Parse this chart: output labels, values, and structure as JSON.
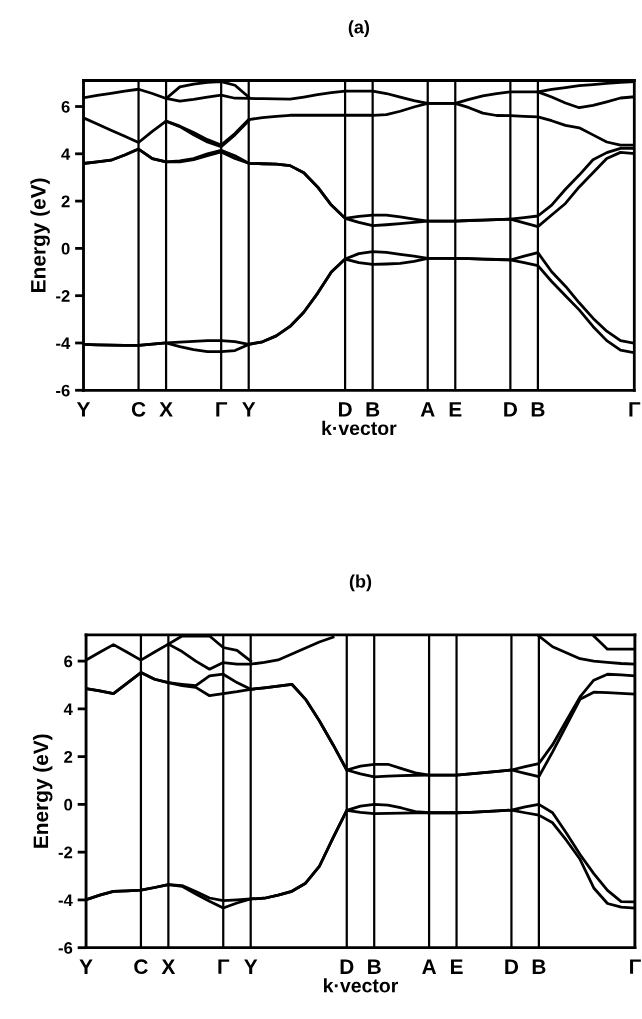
{
  "chart_data": [
    {
      "type": "line",
      "title": "(a)",
      "xlabel": "k·vector",
      "ylabel": "Energy (eV)",
      "ylim": [
        -6,
        7.1
      ],
      "yticks": [
        -6,
        -4,
        -2,
        0,
        2,
        4,
        6
      ],
      "categories": [
        "Y",
        null,
        null,
        null,
        "C",
        null,
        "X",
        null,
        null,
        null,
        "Γ",
        null,
        "Y",
        null,
        null,
        null,
        null,
        null,
        null,
        "D",
        null,
        "B",
        null,
        null,
        null,
        "A",
        null,
        "E",
        null,
        null,
        null,
        "D",
        null,
        "B",
        null,
        null,
        null,
        null,
        null,
        null,
        "Γ"
      ],
      "grid": "x",
      "marker": "none",
      "line_style": "solid",
      "series": [
        {
          "color": "#000000",
          "values": [
            -4.06,
            -4.08,
            -4.09,
            -4.1,
            -4.1,
            -4.05,
            -4.0,
            -4.15,
            -4.28,
            -4.37,
            -4.37,
            -4.32,
            -4.06,
            -3.95,
            -3.7,
            -3.3,
            -2.7,
            -1.9,
            -1.0,
            -0.45,
            -0.6,
            -0.68,
            -0.66,
            -0.63,
            -0.55,
            -0.42,
            -0.42,
            -0.42,
            -0.43,
            -0.45,
            -0.47,
            -0.49,
            -0.6,
            -0.73,
            -1.4,
            -2.0,
            -2.6,
            -3.3,
            -3.9,
            -4.3,
            -4.41
          ]
        },
        {
          "color": "#000000",
          "values": [
            -4.06,
            -4.08,
            -4.09,
            -4.1,
            -4.1,
            -4.05,
            -4.0,
            -3.96,
            -3.93,
            -3.9,
            -3.9,
            -3.94,
            -4.06,
            -3.95,
            -3.7,
            -3.3,
            -2.7,
            -1.9,
            -1.0,
            -0.45,
            -0.22,
            -0.14,
            -0.17,
            -0.25,
            -0.33,
            -0.42,
            -0.42,
            -0.42,
            -0.43,
            -0.45,
            -0.47,
            -0.49,
            -0.33,
            -0.18,
            -0.99,
            -1.6,
            -2.3,
            -2.95,
            -3.5,
            -3.9,
            -4.01
          ]
        },
        {
          "color": "#000000",
          "values": [
            3.59,
            3.66,
            3.73,
            3.95,
            4.2,
            3.8,
            3.66,
            3.66,
            3.75,
            3.92,
            4.08,
            3.8,
            3.6,
            3.58,
            3.56,
            3.5,
            3.2,
            2.6,
            1.83,
            1.27,
            1.1,
            0.96,
            1.0,
            1.05,
            1.1,
            1.15,
            1.15,
            1.15,
            1.18,
            1.2,
            1.22,
            1.24,
            1.08,
            0.92,
            1.41,
            1.9,
            2.6,
            3.2,
            3.8,
            4.06,
            4.01
          ]
        },
        {
          "color": "#000000",
          "values": [
            3.59,
            3.66,
            3.73,
            3.95,
            4.2,
            3.8,
            3.66,
            3.7,
            3.8,
            4.0,
            4.15,
            3.92,
            3.6,
            3.58,
            3.56,
            3.5,
            3.2,
            2.6,
            1.83,
            1.27,
            1.35,
            1.41,
            1.41,
            1.33,
            1.24,
            1.15,
            1.15,
            1.15,
            1.18,
            1.2,
            1.22,
            1.24,
            1.3,
            1.37,
            1.83,
            2.5,
            3.1,
            3.75,
            4.05,
            4.23,
            4.23
          ]
        },
        {
          "color": "#000000",
          "values": [
            5.52,
            5.26,
            5.0,
            4.74,
            4.48,
            4.95,
            5.38,
            5.17,
            4.9,
            4.6,
            4.37,
            4.86,
            5.45,
            5.53,
            5.58,
            5.63,
            5.63,
            5.63,
            5.63,
            5.63,
            5.63,
            5.63,
            5.66,
            5.8,
            5.98,
            6.13,
            6.13,
            6.13,
            5.95,
            5.72,
            5.62,
            5.61,
            5.58,
            5.56,
            5.4,
            5.2,
            5.1,
            4.8,
            4.5,
            4.37,
            4.37
          ]
        },
        {
          "color": "#000000",
          "values": [
            null,
            null,
            null,
            null,
            null,
            null,
            5.38,
            5.15,
            4.8,
            4.5,
            4.3,
            4.8,
            5.4,
            null,
            null,
            null,
            null,
            null,
            null,
            null,
            null,
            null,
            null,
            null,
            null,
            null,
            null,
            null,
            null,
            null,
            null,
            null,
            null,
            null,
            null,
            null,
            null,
            null,
            null,
            null,
            null
          ]
        },
        {
          "color": "#000000",
          "values": [
            6.37,
            6.47,
            6.56,
            6.65,
            6.73,
            6.55,
            6.34,
            6.23,
            6.3,
            6.4,
            6.48,
            6.35,
            6.34,
            6.33,
            6.32,
            6.31,
            6.4,
            6.5,
            6.59,
            6.65,
            6.65,
            6.65,
            6.55,
            6.4,
            6.25,
            6.13,
            6.13,
            6.13,
            6.3,
            6.45,
            6.55,
            6.62,
            6.62,
            6.62,
            6.4,
            6.15,
            5.95,
            6.05,
            6.2,
            6.36,
            6.41
          ]
        },
        {
          "color": "#000000",
          "values": [
            null,
            null,
            null,
            null,
            null,
            null,
            6.34,
            6.83,
            6.95,
            7.02,
            7.05,
            6.9,
            6.4,
            null,
            null,
            null,
            null,
            null,
            null,
            null,
            null,
            null,
            null,
            null,
            null,
            null,
            null,
            null,
            null,
            null,
            null,
            null,
            null,
            null,
            null,
            null,
            null,
            null,
            null,
            null,
            null
          ]
        },
        {
          "color": "#000000",
          "values": [
            null,
            null,
            null,
            null,
            null,
            null,
            null,
            null,
            null,
            null,
            null,
            null,
            null,
            null,
            null,
            null,
            null,
            null,
            null,
            null,
            null,
            null,
            null,
            null,
            null,
            null,
            null,
            null,
            null,
            null,
            null,
            null,
            null,
            6.62,
            6.72,
            6.8,
            6.88,
            6.93,
            6.98,
            7.02,
            7.05
          ]
        }
      ]
    },
    {
      "type": "line",
      "title": "(b)",
      "xlabel": "k·vector",
      "ylabel": "Energy (eV)",
      "ylim": [
        -6,
        7.1
      ],
      "yticks": [
        -6,
        -4,
        -2,
        0,
        2,
        4,
        6
      ],
      "categories": [
        "Y",
        null,
        null,
        null,
        "C",
        null,
        "X",
        null,
        null,
        null,
        "Γ",
        null,
        "Y",
        null,
        null,
        null,
        null,
        null,
        null,
        "D",
        null,
        "B",
        null,
        null,
        null,
        "A",
        null,
        "E",
        null,
        null,
        null,
        "D",
        null,
        "B",
        null,
        null,
        null,
        null,
        null,
        null,
        "Γ"
      ],
      "grid": "x",
      "marker": "none",
      "line_style": "solid",
      "series": [
        {
          "color": "#000000",
          "values": [
            -3.99,
            -3.8,
            -3.64,
            -3.62,
            -3.59,
            -3.48,
            -3.36,
            -3.43,
            -3.75,
            -4.06,
            -4.34,
            -4.13,
            -3.96,
            -3.93,
            -3.8,
            -3.64,
            -3.3,
            -2.6,
            -1.4,
            -0.25,
            -0.33,
            -0.39,
            -0.38,
            -0.37,
            -0.36,
            -0.35,
            -0.35,
            -0.35,
            -0.33,
            -0.3,
            -0.27,
            -0.24,
            -0.35,
            -0.45,
            -0.77,
            -1.5,
            -2.3,
            -3.5,
            -4.15,
            -4.3,
            -4.34
          ]
        },
        {
          "color": "#000000",
          "values": [
            -3.99,
            -3.8,
            -3.64,
            -3.62,
            -3.59,
            -3.48,
            -3.36,
            -3.4,
            -3.65,
            -3.92,
            -4.03,
            -4.0,
            -3.96,
            -3.93,
            -3.8,
            -3.64,
            -3.3,
            -2.6,
            -1.4,
            -0.25,
            -0.07,
            0.0,
            -0.03,
            -0.15,
            -0.3,
            -0.35,
            -0.35,
            -0.35,
            -0.33,
            -0.3,
            -0.27,
            -0.24,
            -0.1,
            0.0,
            -0.35,
            -1.2,
            -2.1,
            -2.9,
            -3.6,
            -4.07,
            -4.08
          ]
        },
        {
          "color": "#000000",
          "values": [
            4.85,
            4.75,
            4.64,
            5.08,
            5.52,
            5.24,
            5.1,
            4.97,
            4.9,
            4.55,
            4.64,
            4.72,
            4.82,
            4.88,
            4.95,
            5.03,
            4.4,
            3.5,
            2.5,
            1.44,
            1.28,
            1.15,
            1.18,
            1.2,
            1.22,
            1.23,
            1.23,
            1.23,
            1.28,
            1.33,
            1.38,
            1.44,
            1.3,
            1.16,
            2.2,
            3.3,
            4.4,
            4.7,
            4.68,
            4.65,
            4.62
          ]
        },
        {
          "color": "#000000",
          "values": [
            4.85,
            4.75,
            4.64,
            5.08,
            5.52,
            5.24,
            5.1,
            5.03,
            4.97,
            5.38,
            5.45,
            5.1,
            4.82,
            4.88,
            4.95,
            5.03,
            4.4,
            3.5,
            2.5,
            1.44,
            1.6,
            1.68,
            1.68,
            1.5,
            1.32,
            1.23,
            1.23,
            1.23,
            1.28,
            1.33,
            1.38,
            1.44,
            1.58,
            1.71,
            2.5,
            3.5,
            4.5,
            5.2,
            5.45,
            5.42,
            5.38
          ]
        },
        {
          "color": "#000000",
          "values": [
            6.04,
            6.37,
            6.69,
            6.37,
            6.04,
            6.38,
            6.71,
            6.4,
            6.0,
            5.66,
            5.94,
            5.87,
            5.87,
            5.95,
            6.05,
            6.3,
            6.55,
            6.8,
            7.0,
            null,
            null,
            null,
            null,
            null,
            null,
            null,
            null,
            null,
            null,
            null,
            null,
            null,
            null,
            null,
            null,
            null,
            null,
            null,
            null,
            null,
            null
          ]
        },
        {
          "color": "#000000",
          "values": [
            null,
            null,
            null,
            null,
            null,
            null,
            6.71,
            7.05,
            7.05,
            7.05,
            6.57,
            6.45,
            6.0,
            null,
            null,
            null,
            null,
            null,
            null,
            null,
            null,
            null,
            null,
            null,
            null,
            null,
            null,
            null,
            null,
            null,
            null,
            null,
            null,
            null,
            null,
            null,
            null,
            null,
            null,
            null,
            null
          ]
        },
        {
          "color": "#000000",
          "values": [
            null,
            null,
            null,
            null,
            null,
            null,
            null,
            null,
            null,
            null,
            null,
            null,
            null,
            null,
            null,
            null,
            null,
            null,
            null,
            null,
            null,
            null,
            null,
            null,
            null,
            null,
            null,
            null,
            null,
            null,
            null,
            null,
            null,
            7.05,
            6.6,
            6.35,
            6.1,
            6.0,
            5.95,
            5.9,
            5.87
          ]
        },
        {
          "color": "#000000",
          "values": [
            null,
            null,
            null,
            null,
            null,
            null,
            null,
            null,
            null,
            null,
            null,
            null,
            null,
            null,
            null,
            null,
            null,
            null,
            null,
            null,
            null,
            null,
            null,
            null,
            null,
            null,
            null,
            null,
            null,
            null,
            null,
            null,
            null,
            null,
            null,
            null,
            null,
            7.05,
            6.5,
            6.5,
            6.5
          ]
        }
      ]
    }
  ]
}
